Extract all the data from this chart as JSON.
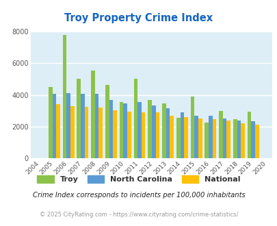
{
  "title": "Troy Property Crime Index",
  "years": [
    2004,
    2005,
    2006,
    2007,
    2008,
    2009,
    2010,
    2011,
    2012,
    2013,
    2014,
    2015,
    2016,
    2017,
    2018,
    2019,
    2020
  ],
  "troy": [
    0,
    4500,
    7800,
    5000,
    5550,
    4650,
    3550,
    5000,
    3700,
    3450,
    2550,
    3900,
    2250,
    3000,
    2450,
    2950,
    0
  ],
  "north_carolina": [
    0,
    4050,
    4100,
    4050,
    4050,
    3700,
    3450,
    3550,
    3350,
    3150,
    2900,
    2700,
    2700,
    2500,
    2400,
    2350,
    0
  ],
  "national": [
    0,
    3400,
    3300,
    3250,
    3200,
    3050,
    2950,
    2900,
    2900,
    2700,
    2600,
    2500,
    2450,
    2400,
    2200,
    2100,
    0
  ],
  "troy_color": "#8bc34a",
  "nc_color": "#5b9bd5",
  "nat_color": "#ffc000",
  "bg_color": "#deeef6",
  "grid_color": "#ffffff",
  "title_color": "#1565c0",
  "ylabel_max": 8000,
  "yticks": [
    0,
    2000,
    4000,
    6000,
    8000
  ],
  "footnote1": "Crime Index corresponds to incidents per 100,000 inhabitants",
  "footnote2": "© 2025 CityRating.com - https://www.cityrating.com/crime-statistics/",
  "legend_labels": [
    "Troy",
    "North Carolina",
    "National"
  ]
}
